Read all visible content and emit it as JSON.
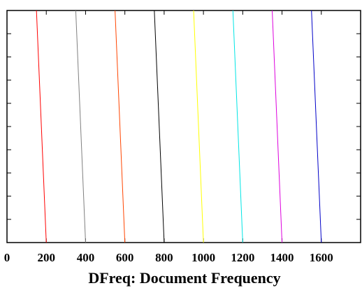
{
  "chart_data": {
    "type": "line",
    "xlabel": "DFreq: Document Frequency",
    "ylabel": "",
    "xlim": [
      0,
      1800
    ],
    "xticks": [
      0,
      200,
      400,
      600,
      800,
      1000,
      1200,
      1400,
      1600
    ],
    "xtick_labels": [
      "0",
      "200",
      "400",
      "600",
      "800",
      "1000",
      "1200",
      "1400",
      "1600"
    ],
    "ytick_count": 9,
    "ytick_labels_shown": false,
    "grid": false,
    "legend": "none",
    "series": [
      {
        "color": "#ff0000",
        "x": [
          150,
          200
        ]
      },
      {
        "color": "#808080",
        "x": [
          350,
          400
        ]
      },
      {
        "color": "#ff4500",
        "x": [
          550,
          600
        ]
      },
      {
        "color": "#000000",
        "x": [
          750,
          800
        ]
      },
      {
        "color": "#ffff00",
        "x": [
          950,
          1000
        ]
      },
      {
        "color": "#00e5e5",
        "x": [
          1150,
          1200
        ]
      },
      {
        "color": "#dd00dd",
        "x": [
          1350,
          1400
        ]
      },
      {
        "color": "#0000c8",
        "x": [
          1550,
          1600
        ]
      }
    ]
  }
}
